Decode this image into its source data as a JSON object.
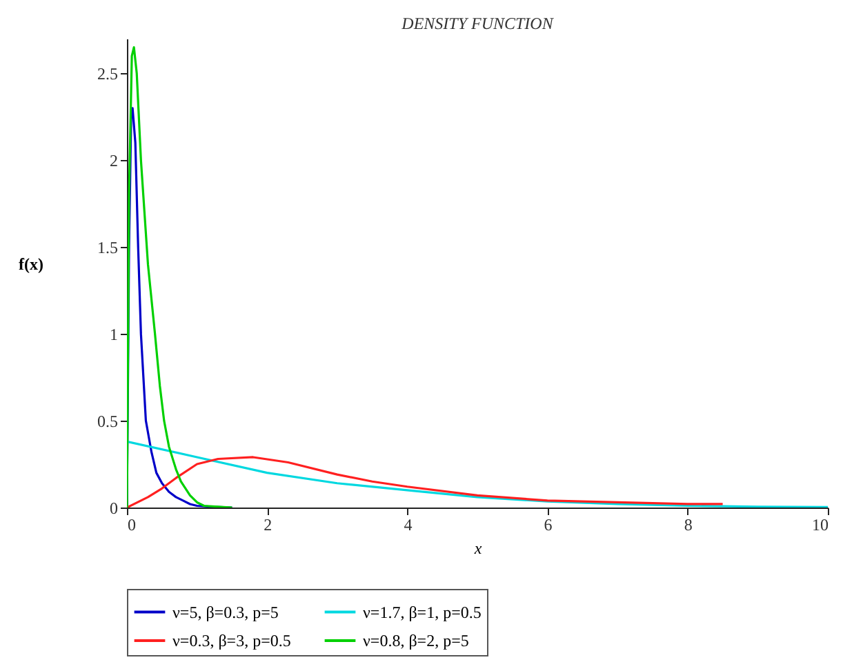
{
  "chart_data": {
    "type": "line",
    "title": "DENSITY FUNCTION",
    "xlabel": "x",
    "ylabel": "f(x)",
    "xlim": [
      0,
      10
    ],
    "xticks": [
      0,
      2,
      4,
      6,
      8,
      10
    ],
    "ylim": [
      0,
      2.7
    ],
    "yticks": [
      0,
      0.5,
      1,
      1.5,
      2,
      2.5
    ],
    "grid": false,
    "legend": "bottom",
    "line_style": "solid",
    "marker": "none",
    "series": [
      {
        "name": "ν=5, β=0.3, p=5",
        "color": "#0000c8",
        "x": [
          0,
          0.03,
          0.06,
          0.08,
          0.12,
          0.16,
          0.2,
          0.27,
          0.35,
          0.42,
          0.5,
          0.6,
          0.7,
          0.8,
          0.9,
          1.0,
          1.2,
          1.5
        ],
        "values": [
          0,
          1.5,
          2.25,
          2.3,
          2.1,
          1.5,
          1.0,
          0.5,
          0.32,
          0.2,
          0.14,
          0.09,
          0.06,
          0.04,
          0.02,
          0.01,
          0.005,
          0
        ]
      },
      {
        "name": "ν=1.7, β=1, p=0.5",
        "color": "#00d8e0",
        "x": [
          0,
          1,
          2,
          3,
          4,
          5,
          6,
          7,
          8,
          9,
          10
        ],
        "values": [
          0.38,
          0.29,
          0.2,
          0.14,
          0.1,
          0.06,
          0.035,
          0.02,
          0.01,
          0.005,
          0.003
        ]
      },
      {
        "name": "ν=0.3, β=3, p=0.5",
        "color": "#ff2020",
        "x": [
          0,
          0.3,
          0.5,
          0.7,
          1,
          1.3,
          1.8,
          2.3,
          3,
          3.5,
          4,
          5,
          6,
          7,
          8,
          8.5
        ],
        "values": [
          0,
          0.06,
          0.11,
          0.17,
          0.25,
          0.28,
          0.29,
          0.26,
          0.19,
          0.15,
          0.12,
          0.07,
          0.04,
          0.03,
          0.02,
          0.02
        ]
      },
      {
        "name": "ν=0.8, β=2, p=5",
        "color": "#00d000",
        "x": [
          0,
          0.03,
          0.07,
          0.1,
          0.14,
          0.2,
          0.3,
          0.4,
          0.47,
          0.53,
          0.6,
          0.7,
          0.77,
          0.9,
          1.0,
          1.1,
          1.5
        ],
        "values": [
          0,
          1.8,
          2.6,
          2.65,
          2.5,
          2.0,
          1.4,
          1.0,
          0.7,
          0.5,
          0.35,
          0.22,
          0.15,
          0.07,
          0.03,
          0.01,
          0
        ]
      }
    ]
  }
}
